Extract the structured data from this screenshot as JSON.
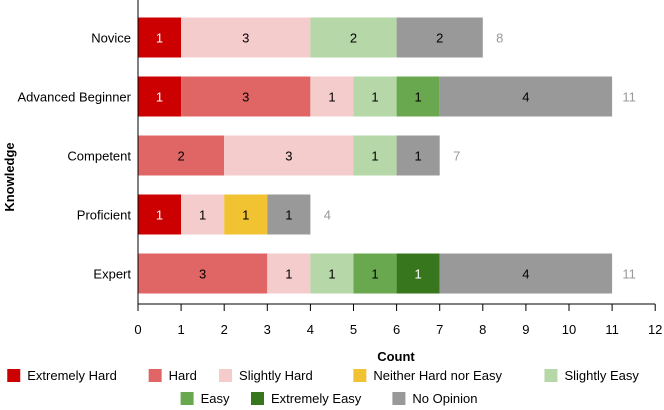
{
  "chart_data": {
    "type": "bar",
    "orientation": "horizontal",
    "stacked": true,
    "xlabel": "Count",
    "ylabel": "Knowledge",
    "xlim": [
      0,
      12
    ],
    "xticks": [
      "0",
      "1",
      "2",
      "3",
      "4",
      "5",
      "6",
      "7",
      "8",
      "9",
      "10",
      "11",
      "12"
    ],
    "grid": false,
    "legend_position": "bottom",
    "categories": [
      "Novice",
      "Advanced Beginner",
      "Competent",
      "Proficient",
      "Expert"
    ],
    "totals": [
      8,
      11,
      7,
      4,
      11
    ],
    "series": [
      {
        "name": "Extremely Hard",
        "color": "#cc0000",
        "values": [
          1,
          1,
          0,
          1,
          0
        ]
      },
      {
        "name": "Hard",
        "color": "#e06666",
        "values": [
          0,
          3,
          2,
          0,
          3
        ]
      },
      {
        "name": "Slightly Hard",
        "color": "#f4cccc",
        "values": [
          3,
          1,
          3,
          1,
          1
        ]
      },
      {
        "name": "Neither Hard nor Easy",
        "color": "#f1c232",
        "values": [
          0,
          0,
          0,
          1,
          0
        ]
      },
      {
        "name": "Slightly Easy",
        "color": "#b6d7a8",
        "values": [
          2,
          1,
          1,
          0,
          1
        ]
      },
      {
        "name": "Easy",
        "color": "#6aa84f",
        "values": [
          0,
          1,
          0,
          0,
          1
        ]
      },
      {
        "name": "Extremely Easy",
        "color": "#38761d",
        "values": [
          0,
          0,
          0,
          0,
          1
        ]
      },
      {
        "name": "No Opinion",
        "color": "#999999",
        "values": [
          2,
          4,
          1,
          1,
          4
        ]
      }
    ]
  }
}
